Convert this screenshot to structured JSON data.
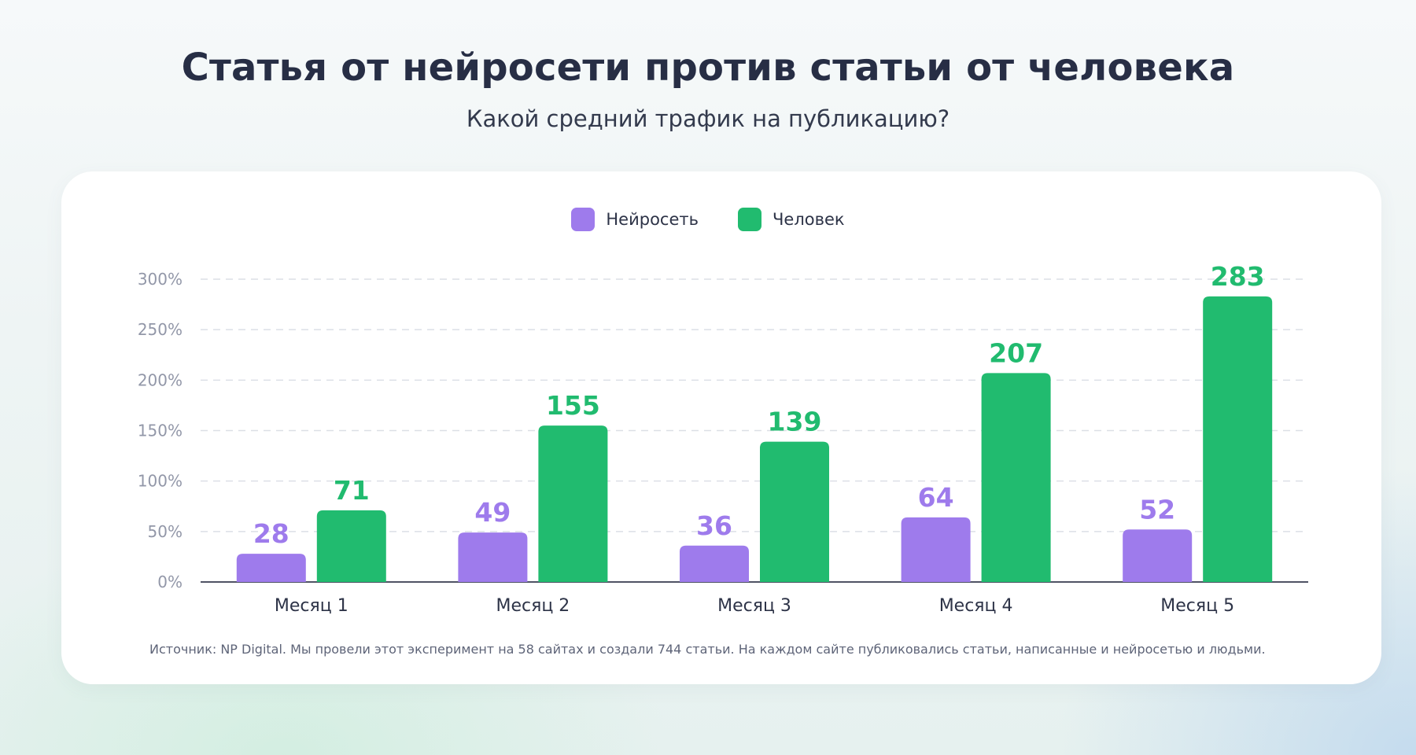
{
  "title": "Статья от нейросети против статьи от человека",
  "subtitle": "Какой средний трафик на публикацию?",
  "source_note": "Источник: NP Digital. Мы провели этот эксперимент на 58 сайтах и создали 744 статьи. На каждом сайте публиковались статьи, написанные и нейросетью и людьми.",
  "legend": [
    {
      "label": "Нейросеть",
      "color": "#9e7bec"
    },
    {
      "label": "Человек",
      "color": "#21bb6f"
    }
  ],
  "chart_data": {
    "type": "bar",
    "title": "Статья от нейросети против статьи от человека",
    "subtitle": "Какой средний трафик на публикацию?",
    "categories": [
      "Месяц 1",
      "Месяц 2",
      "Месяц 3",
      "Месяц 4",
      "Месяц 5"
    ],
    "series": [
      {
        "name": "Нейросеть",
        "color": "#9e7bec",
        "values": [
          28,
          49,
          36,
          64,
          52
        ]
      },
      {
        "name": "Человек",
        "color": "#21bb6f",
        "values": [
          71,
          155,
          139,
          207,
          283
        ]
      }
    ],
    "ylim": [
      0,
      300
    ],
    "yticks": [
      0,
      50,
      100,
      150,
      200,
      250,
      300
    ],
    "ytick_labels": [
      "0%",
      "50%",
      "100%",
      "150%",
      "200%",
      "250%",
      "300%"
    ],
    "grid": true,
    "grid_style": "dashed",
    "legend_position": "top-center",
    "data_labels": true
  }
}
